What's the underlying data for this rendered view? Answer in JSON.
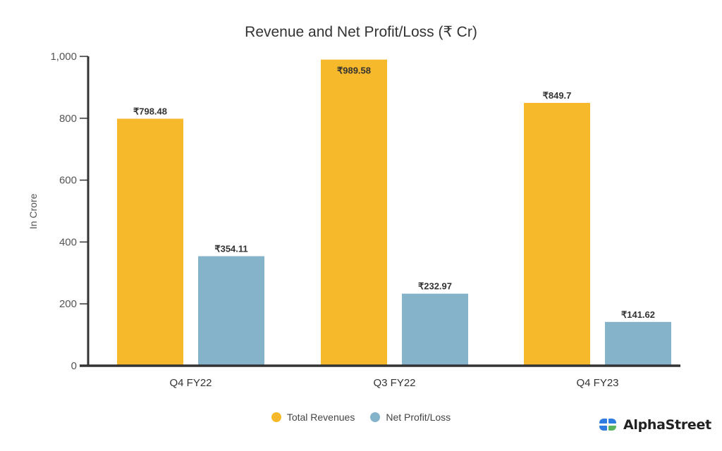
{
  "chart_data": {
    "type": "bar",
    "title": "Revenue and Net Profit/Loss (₹ Cr)",
    "xlabel": "",
    "ylabel": "In Crore",
    "ylim": [
      0,
      1000
    ],
    "yticks": [
      0,
      200,
      400,
      600,
      800,
      1000
    ],
    "ytick_labels": [
      "0",
      "200",
      "400",
      "600",
      "800",
      "1,000"
    ],
    "grid": false,
    "categories": [
      "Q4 FY22",
      "Q3 FY22",
      "Q4 FY23"
    ],
    "series": [
      {
        "name": "Total Revenues",
        "color": "#F6B92B",
        "values": [
          798.48,
          989.58,
          849.7
        ],
        "labels": [
          "₹798.48",
          "₹989.58",
          "₹849.7"
        ]
      },
      {
        "name": "Net Profit/Loss",
        "color": "#85B4CA",
        "values": [
          354.11,
          232.97,
          141.62
        ],
        "labels": [
          "₹354.11",
          "₹232.97",
          "₹141.62"
        ]
      }
    ],
    "legend_position": "bottom-center"
  },
  "legend": {
    "items": [
      {
        "label": "Total Revenues",
        "color": "#F6B92B"
      },
      {
        "label": "Net Profit/Loss",
        "color": "#85B4CA"
      }
    ]
  },
  "brand": {
    "name": "AlphaStreet",
    "icon": "alphastreet-logo-icon"
  }
}
